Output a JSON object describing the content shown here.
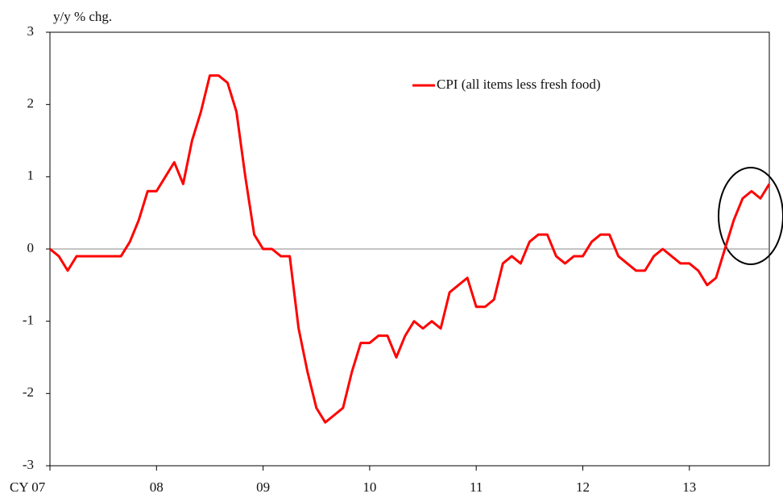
{
  "chart_data": {
    "type": "line",
    "ylabel": "y/y % chg.",
    "categories": [
      "CY 07",
      null,
      null,
      null,
      null,
      null,
      null,
      null,
      null,
      null,
      null,
      null,
      "08",
      null,
      null,
      null,
      null,
      null,
      null,
      null,
      null,
      null,
      null,
      null,
      "09",
      null,
      null,
      null,
      null,
      null,
      null,
      null,
      null,
      null,
      null,
      null,
      "10",
      null,
      null,
      null,
      null,
      null,
      null,
      null,
      null,
      null,
      null,
      null,
      "11",
      null,
      null,
      null,
      null,
      null,
      null,
      null,
      null,
      null,
      null,
      null,
      "12",
      null,
      null,
      null,
      null,
      null,
      null,
      null,
      null,
      null,
      null,
      null,
      "13",
      null,
      null,
      null,
      null,
      null,
      null,
      null,
      null,
      null
    ],
    "series": [
      {
        "name": "CPI (all items less fresh food)",
        "color": "#ff0000",
        "values": [
          0,
          -0.1,
          -0.3,
          -0.1,
          -0.1,
          -0.1,
          -0.1,
          -0.1,
          -0.1,
          0.1,
          0.4,
          0.8,
          0.8,
          1.0,
          1.2,
          0.9,
          1.5,
          1.9,
          2.4,
          2.4,
          2.3,
          1.9,
          1.0,
          0.2,
          0.0,
          0.0,
          -0.1,
          -0.1,
          -1.1,
          -1.7,
          -2.2,
          -2.4,
          -2.3,
          -2.2,
          -1.7,
          -1.3,
          -1.3,
          -1.2,
          -1.2,
          -1.5,
          -1.2,
          -1.0,
          -1.1,
          -1.0,
          -1.1,
          -0.6,
          -0.5,
          -0.4,
          -0.8,
          -0.8,
          -0.7,
          -0.2,
          -0.1,
          -0.2,
          0.1,
          0.2,
          0.2,
          -0.1,
          -0.2,
          -0.1,
          -0.1,
          0.1,
          0.2,
          0.2,
          -0.1,
          -0.2,
          -0.3,
          -0.3,
          -0.1,
          0.0,
          -0.1,
          -0.2,
          -0.2,
          -0.3,
          -0.5,
          -0.4,
          0.0,
          0.4,
          0.7,
          0.8,
          0.7,
          0.9
        ]
      }
    ],
    "ylim": [
      -3,
      3
    ],
    "yticks": [
      -3,
      -2,
      -1,
      0,
      1,
      2,
      3
    ],
    "zero_line": true,
    "legend": "upper right"
  }
}
